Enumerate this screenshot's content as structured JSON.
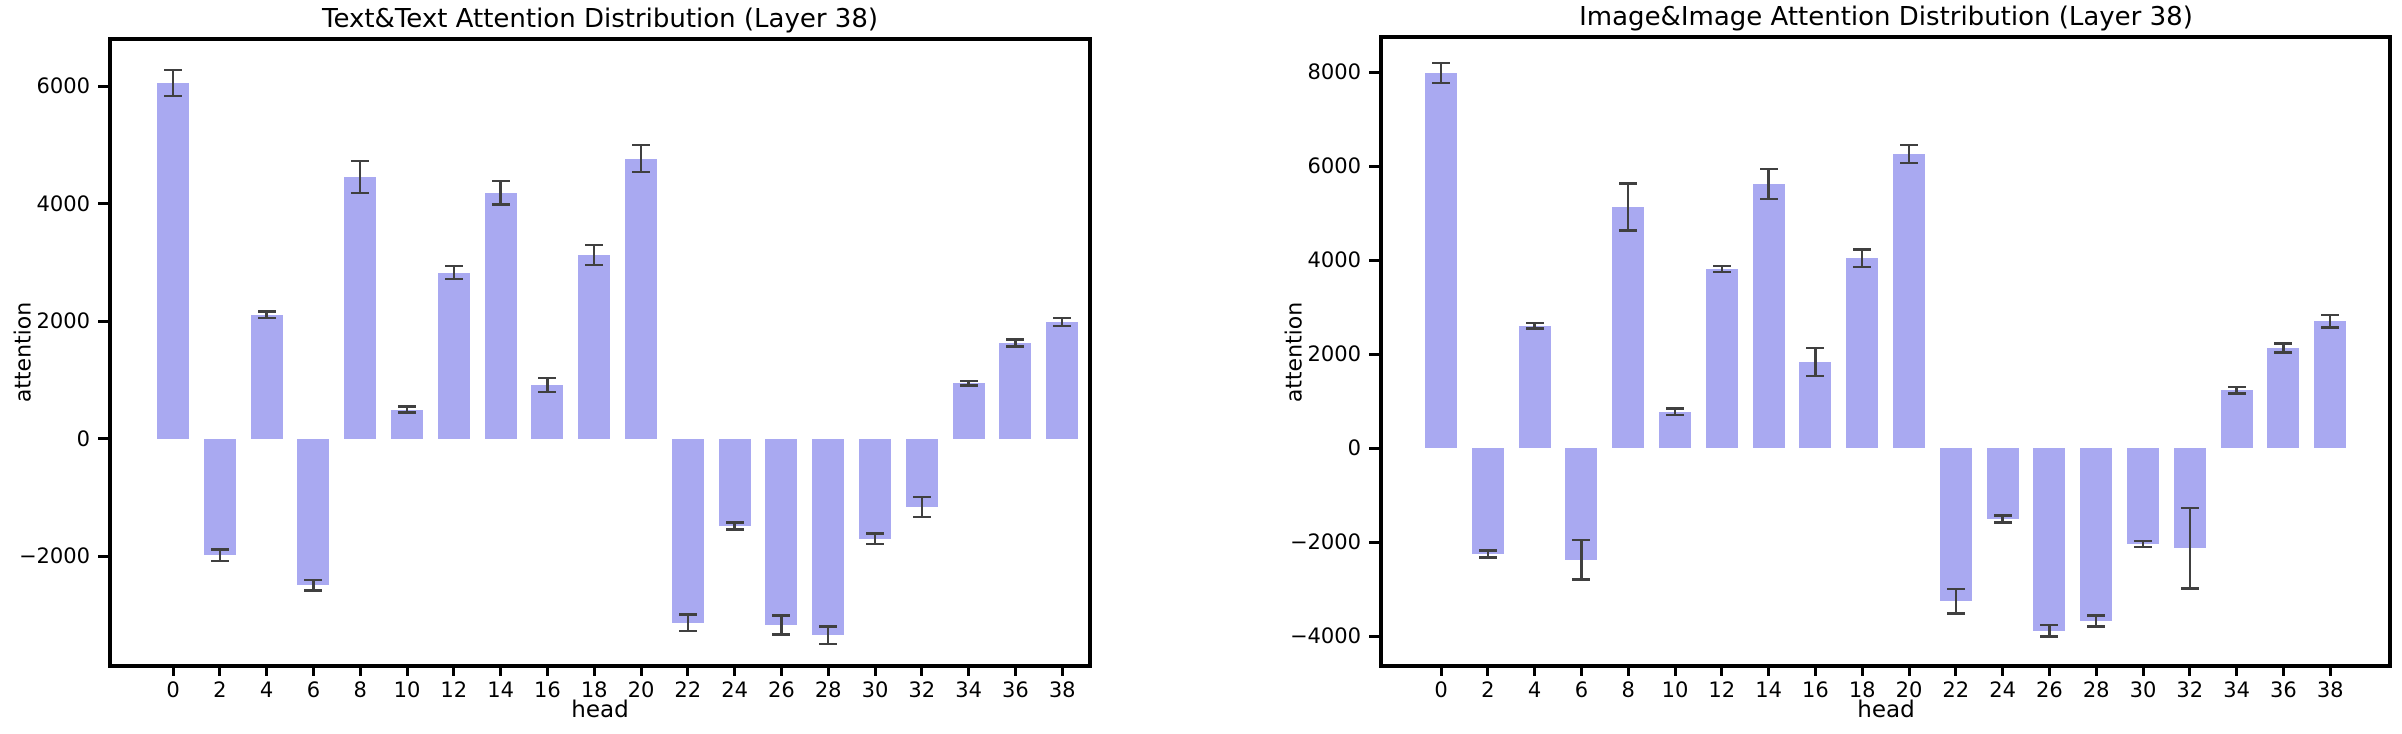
{
  "chart_data": [
    {
      "type": "bar",
      "title": "Text&Text Attention Distribution (Layer 38)",
      "xlabel": "head",
      "ylabel": "attention",
      "categories": [
        0,
        2,
        4,
        6,
        8,
        10,
        12,
        14,
        16,
        18,
        20,
        22,
        24,
        26,
        28,
        30,
        32,
        34,
        36,
        38
      ],
      "values": [
        6060,
        -1980,
        2110,
        -2490,
        4460,
        500,
        2830,
        4190,
        920,
        3130,
        4770,
        -3130,
        -1480,
        -3170,
        -3340,
        -1700,
        -1160,
        950,
        1630,
        1990
      ],
      "errors": [
        220,
        100,
        55,
        90,
        270,
        50,
        110,
        200,
        120,
        170,
        230,
        140,
        60,
        160,
        150,
        90,
        170,
        40,
        60,
        70
      ],
      "yticks": [
        6000,
        4000,
        2000,
        0,
        -2000
      ],
      "ylim": [
        -3900,
        6842
      ],
      "bar_color": "#a9a9f1",
      "error_color": "#404040",
      "grid": false,
      "legend": "none"
    },
    {
      "type": "bar",
      "title": "Image&Image Attention Distribution (Layer 38)",
      "xlabel": "head",
      "ylabel": "attention",
      "categories": [
        0,
        2,
        4,
        6,
        8,
        10,
        12,
        14,
        16,
        18,
        20,
        22,
        24,
        26,
        28,
        30,
        32,
        34,
        36,
        38
      ],
      "values": [
        7980,
        -2250,
        2600,
        -2380,
        5130,
        770,
        3810,
        5620,
        1830,
        4040,
        6260,
        -3260,
        -1510,
        -3890,
        -3680,
        -2040,
        -2130,
        1230,
        2130,
        2700
      ],
      "errors": [
        210,
        75,
        60,
        420,
        500,
        70,
        65,
        320,
        300,
        190,
        190,
        260,
        70,
        120,
        120,
        60,
        860,
        70,
        100,
        130
      ],
      "yticks": [
        8000,
        6000,
        4000,
        2000,
        0,
        -2000,
        -4000
      ],
      "ylim": [
        -4680,
        8790
      ],
      "bar_color": "#a9a9f1",
      "error_color": "#404040",
      "grid": false,
      "legend": "none"
    }
  ]
}
